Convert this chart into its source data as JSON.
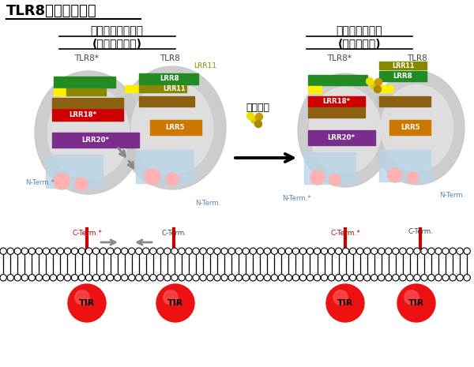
{
  "title": "TLR8の活性化機構",
  "left_label_line1": "リガンド非結合型",
  "left_label_line2": "(不活性化状態)",
  "right_label_line1": "リガンド結合型",
  "right_label_line2": "(活性化状態)",
  "ligand_label": "リガンド",
  "tir_label": "TIR",
  "colors": {
    "background": "#ffffff",
    "tir_red": "#ee1111",
    "tir_highlight": "#ff6666",
    "lrr11": "#888800",
    "lrr8_green": "#228B22",
    "lrr18_red": "#cc0000",
    "lrr20_purple": "#7B2D8B",
    "lrr5_orange": "#cc7700",
    "yellow_bar": "#ffee00",
    "brown_bar": "#8B6010",
    "light_blue": "#b8d4e8",
    "pink_bump": "#ffb0b0",
    "n_term_color": "#5588bb",
    "c_term_star_color": "#cc0000",
    "c_term_color": "#444444",
    "arrow_gray": "#888888",
    "ellipse_outer": "#c8c8c8",
    "ellipse_inner": "#e0e0e0"
  }
}
